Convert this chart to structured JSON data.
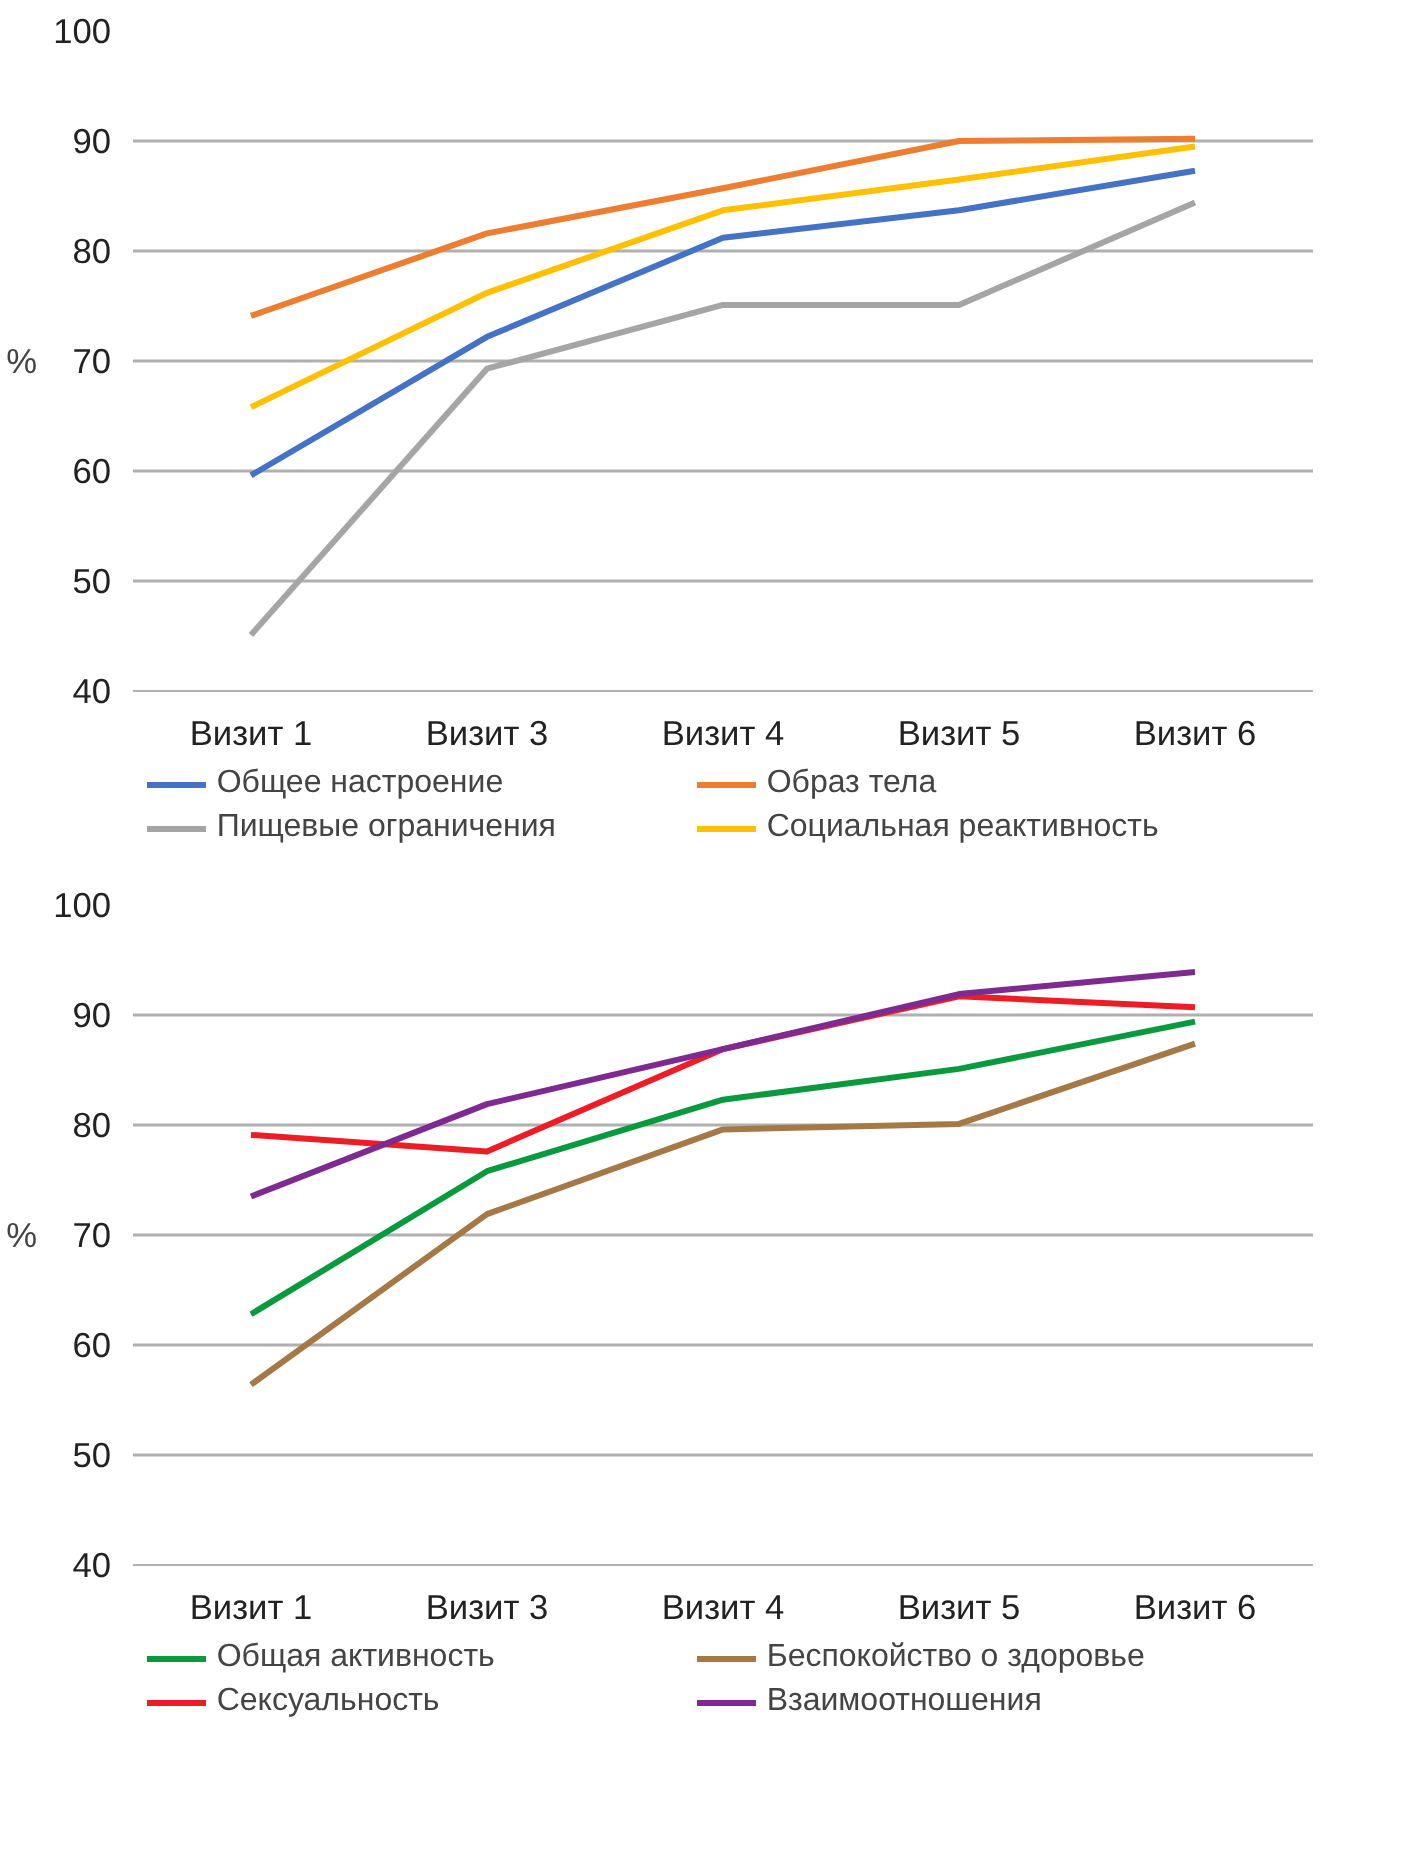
{
  "chart_data": [
    {
      "type": "line",
      "ylabel": "%",
      "categories": [
        "Визит 1",
        "Визит 3",
        "Визит 4",
        "Визит 5",
        "Визит 6"
      ],
      "ylim": [
        40,
        100
      ],
      "yticks": [
        40,
        50,
        60,
        70,
        80,
        90,
        100
      ],
      "grid": "y",
      "legend": "bottom",
      "marker": "none",
      "line_style": "solid",
      "series": [
        {
          "name": "Общее настроение",
          "color": "#4472c4",
          "values": [
            59.6,
            72.2,
            81.2,
            83.7,
            87.3
          ]
        },
        {
          "name": "Образ тела",
          "color": "#ed7d31",
          "values": [
            74.1,
            81.6,
            85.7,
            90.0,
            90.2
          ]
        },
        {
          "name": "Пищевые ограничения",
          "color": "#a5a5a5",
          "values": [
            45.1,
            69.3,
            75.1,
            75.1,
            84.4
          ]
        },
        {
          "name": "Социальная реактивность",
          "color": "#ffc000",
          "values": [
            65.8,
            76.2,
            83.7,
            86.5,
            89.5
          ]
        }
      ]
    },
    {
      "type": "line",
      "ylabel": "%",
      "categories": [
        "Визит 1",
        "Визит 3",
        "Визит 4",
        "Визит 5",
        "Визит 6"
      ],
      "ylim": [
        40,
        100
      ],
      "yticks": [
        40,
        50,
        60,
        70,
        80,
        90,
        100
      ],
      "grid": "y",
      "legend": "bottom",
      "marker": "none",
      "line_style": "solid",
      "series": [
        {
          "name": "Общая активность",
          "color": "#0a9a3e",
          "values": [
            62.8,
            75.8,
            82.3,
            85.1,
            89.4
          ]
        },
        {
          "name": "Беспокойство о здоровье",
          "color": "#a57845",
          "values": [
            56.4,
            71.9,
            79.6,
            80.1,
            87.4
          ]
        },
        {
          "name": "Сексуальность",
          "color": "#ee1c25",
          "values": [
            79.1,
            77.6,
            86.9,
            91.7,
            90.7
          ]
        },
        {
          "name": "Взаимоотношения",
          "color": "#7f2a90",
          "values": [
            73.5,
            81.9,
            86.9,
            91.9,
            93.9
          ]
        }
      ]
    }
  ]
}
